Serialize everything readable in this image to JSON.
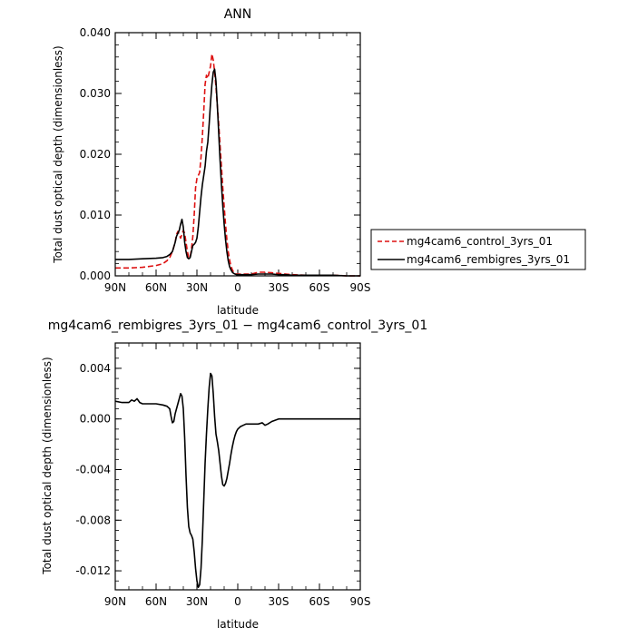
{
  "colors": {
    "control": "#dd1111",
    "rembigres": "#000000",
    "axis": "#000000"
  },
  "chart_data": [
    {
      "type": "line",
      "title": "ANN",
      "xlabel": "latitude",
      "ylabel": "Total dust optical depth (dimensionless)",
      "xlim": [
        90,
        -90
      ],
      "ylim": [
        0,
        0.04
      ],
      "xticks": [
        90,
        60,
        30,
        0,
        -30,
        -60,
        -90
      ],
      "xtick_labels": [
        "90N",
        "60N",
        "30N",
        "0",
        "30S",
        "60S",
        "90S"
      ],
      "yticks": [
        0,
        0.01,
        0.02,
        0.03,
        0.04
      ],
      "ytick_labels": [
        "0.000",
        "0.010",
        "0.020",
        "0.030",
        "0.040"
      ],
      "legend_position": "right",
      "grid": false,
      "series": [
        {
          "name": "mg4cam6_control_3yrs_01",
          "style": "dashed",
          "color": "#dd1111",
          "x": [
            90,
            80,
            70,
            60,
            55,
            52,
            50,
            48,
            46,
            45,
            44,
            43,
            42,
            41,
            40,
            39,
            38,
            37,
            36,
            35,
            34,
            33,
            32,
            31,
            30,
            29,
            28,
            27,
            26,
            25,
            24,
            23,
            22,
            21,
            20,
            19,
            18,
            17,
            16,
            15,
            14,
            13,
            12,
            11,
            10,
            9,
            8,
            7,
            6,
            5,
            4,
            3,
            2,
            1,
            0,
            -2,
            -5,
            -10,
            -15,
            -20,
            -25,
            -30,
            -35,
            -40,
            -50,
            -60,
            -70,
            -80,
            -90
          ],
          "values": [
            0.0013,
            0.0013,
            0.0014,
            0.0017,
            0.002,
            0.0025,
            0.003,
            0.004,
            0.0055,
            0.0068,
            0.0073,
            0.0068,
            0.0062,
            0.0068,
            0.0075,
            0.007,
            0.0055,
            0.004,
            0.003,
            0.003,
            0.0045,
            0.0065,
            0.01,
            0.0145,
            0.016,
            0.0165,
            0.017,
            0.0195,
            0.023,
            0.027,
            0.0315,
            0.033,
            0.0325,
            0.0335,
            0.0345,
            0.0365,
            0.0355,
            0.0335,
            0.031,
            0.028,
            0.025,
            0.0215,
            0.018,
            0.0145,
            0.0115,
            0.0085,
            0.006,
            0.004,
            0.0026,
            0.0016,
            0.001,
            0.0006,
            0.0004,
            0.0003,
            0.0003,
            0.0003,
            0.0003,
            0.0003,
            0.0006,
            0.0006,
            0.0005,
            0.0004,
            0.0003,
            0.0002,
            0.0001,
            0.0001,
            0.0001,
            0.0,
            0.0
          ]
        },
        {
          "name": "mg4cam6_rembigres_3yrs_01",
          "style": "solid",
          "color": "#000000",
          "x": [
            90,
            80,
            70,
            60,
            55,
            52,
            50,
            48,
            46,
            45,
            44,
            43,
            42,
            41,
            40,
            39,
            38,
            37,
            36,
            35,
            34,
            33,
            32,
            31,
            30,
            29,
            28,
            27,
            26,
            25,
            24,
            23,
            22,
            21,
            20,
            19,
            18,
            17,
            16,
            15,
            14,
            13,
            12,
            11,
            10,
            9,
            8,
            7,
            6,
            5,
            4,
            3,
            2,
            1,
            0,
            -2,
            -5,
            -10,
            -15,
            -20,
            -25,
            -30,
            -35,
            -40,
            -50,
            -60,
            -70,
            -80,
            -90
          ],
          "values": [
            0.0027,
            0.0027,
            0.0028,
            0.0029,
            0.003,
            0.0032,
            0.0035,
            0.004,
            0.0055,
            0.0065,
            0.007,
            0.0075,
            0.0085,
            0.0093,
            0.008,
            0.0055,
            0.004,
            0.003,
            0.0028,
            0.003,
            0.004,
            0.005,
            0.0052,
            0.0055,
            0.0062,
            0.008,
            0.0105,
            0.013,
            0.015,
            0.0165,
            0.018,
            0.0205,
            0.022,
            0.025,
            0.0285,
            0.0315,
            0.0335,
            0.034,
            0.032,
            0.028,
            0.0235,
            0.019,
            0.015,
            0.0115,
            0.0085,
            0.006,
            0.004,
            0.0025,
            0.0015,
            0.001,
            0.0006,
            0.0004,
            0.0003,
            0.0002,
            0.0002,
            0.0002,
            0.0002,
            0.0002,
            0.0003,
            0.0003,
            0.0003,
            0.0002,
            0.0002,
            0.0001,
            0.0001,
            0.0001,
            0.0001,
            0.0,
            0.0
          ]
        }
      ]
    },
    {
      "type": "line",
      "title": "mg4cam6_rembigres_3yrs_01 − mg4cam6_control_3yrs_01",
      "xlabel": "latitude",
      "ylabel": "Total dust optical depth (dimensionless)",
      "xlim": [
        90,
        -90
      ],
      "ylim": [
        -0.0135,
        0.006
      ],
      "xticks": [
        90,
        60,
        30,
        0,
        -30,
        -60,
        -90
      ],
      "xtick_labels": [
        "90N",
        "60N",
        "30N",
        "0",
        "30S",
        "60S",
        "90S"
      ],
      "yticks": [
        0.004,
        0.0,
        -0.004,
        -0.008,
        -0.012
      ],
      "ytick_labels": [
        "0.004",
        "0.000",
        "-0.004",
        "-0.008",
        "-0.012"
      ],
      "grid": false,
      "series": [
        {
          "style": "solid",
          "color": "#000000",
          "x": [
            90,
            85,
            80,
            78,
            76,
            74,
            72,
            70,
            65,
            60,
            55,
            52,
            50,
            49,
            48,
            47,
            46,
            45,
            44,
            43,
            42,
            41,
            40,
            39,
            38,
            37,
            36,
            35,
            34,
            33,
            32,
            31,
            30,
            29,
            28,
            27,
            26,
            25,
            24,
            23,
            22,
            21,
            20,
            19,
            18,
            17,
            16,
            15,
            14,
            13,
            12,
            11,
            10,
            9,
            8,
            7,
            6,
            5,
            4,
            3,
            2,
            1,
            0,
            -2,
            -4,
            -6,
            -8,
            -10,
            -12,
            -15,
            -18,
            -20,
            -22,
            -25,
            -30,
            -40,
            -50,
            -60,
            -70,
            -80,
            -90
          ],
          "values": [
            0.0014,
            0.0013,
            0.0013,
            0.0015,
            0.0014,
            0.0016,
            0.0013,
            0.0012,
            0.0012,
            0.0012,
            0.0011,
            0.001,
            0.0008,
            0.0002,
            -0.0003,
            -0.0002,
            0.0004,
            0.0008,
            0.0012,
            0.0016,
            0.002,
            0.0018,
            0.0008,
            -0.0015,
            -0.0045,
            -0.007,
            -0.0085,
            -0.009,
            -0.0092,
            -0.0095,
            -0.0105,
            -0.0118,
            -0.0128,
            -0.0133,
            -0.0131,
            -0.0118,
            -0.0095,
            -0.0065,
            -0.0035,
            -0.0012,
            0.0008,
            0.0025,
            0.0036,
            0.0034,
            0.002,
            0.0002,
            -0.0012,
            -0.0018,
            -0.0025,
            -0.0035,
            -0.0045,
            -0.0052,
            -0.0053,
            -0.0051,
            -0.0047,
            -0.0041,
            -0.0035,
            -0.0028,
            -0.0022,
            -0.0017,
            -0.0013,
            -0.001,
            -0.0008,
            -0.0006,
            -0.0005,
            -0.0004,
            -0.0004,
            -0.0004,
            -0.0004,
            -0.0004,
            -0.0003,
            -0.0005,
            -0.0004,
            -0.0002,
            0.0,
            0.0,
            0.0,
            0.0,
            0.0,
            0.0,
            0.0
          ]
        }
      ]
    }
  ]
}
